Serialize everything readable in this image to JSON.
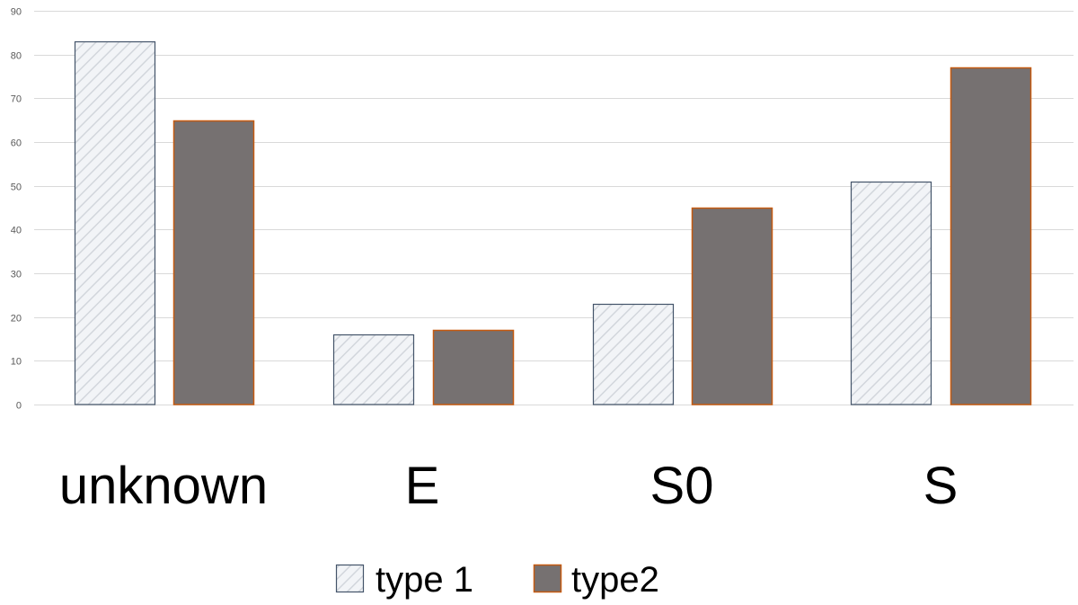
{
  "chart_data": {
    "type": "bar",
    "title": "",
    "xlabel": "",
    "ylabel": "",
    "categories": [
      "unknown",
      "E",
      "S0",
      "S"
    ],
    "series": [
      {
        "name": "type 1",
        "values": [
          83,
          16,
          23,
          51
        ],
        "fill_color": "#f2f4f7",
        "hatch_color": "#d2d6dc",
        "stroke_color": "#44546a"
      },
      {
        "name": "type2",
        "values": [
          65,
          17,
          45,
          77
        ],
        "fill_color": "#767171",
        "stroke_color": "#c55a11"
      }
    ],
    "ylim": [
      0,
      90
    ],
    "y_ticks": [
      "0",
      "10",
      "20",
      "30",
      "40",
      "50",
      "60",
      "70",
      "80",
      "90"
    ],
    "grid": true,
    "legend_position": "bottom"
  }
}
